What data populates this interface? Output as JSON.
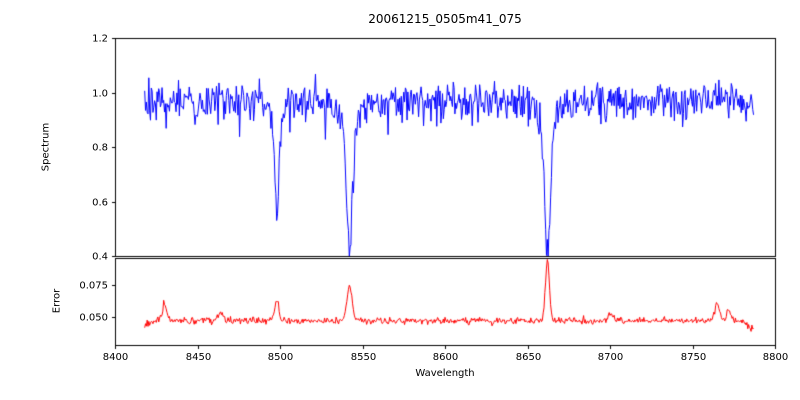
{
  "figure": {
    "background": "#ffffff",
    "axes_color": "#000000"
  },
  "chart_data": {
    "type": "line",
    "title": "20061215_0505m41_075",
    "xlabel": "Wavelength",
    "xlim": [
      8400,
      8800
    ],
    "x_ticks": [
      8400,
      8450,
      8500,
      8550,
      8600,
      8650,
      8700,
      8750,
      8800
    ],
    "x_tick_labels": [
      "8400",
      "8450",
      "8500",
      "8550",
      "8600",
      "8650",
      "8700",
      "8750",
      "8800"
    ],
    "x_data_range": [
      8418,
      8787
    ],
    "grid": false,
    "legend": null,
    "seed": 20061215,
    "panels": [
      {
        "name": "spectrum",
        "ylabel": "Spectrum",
        "ylim": [
          0.4,
          1.2
        ],
        "y_ticks": [
          0.4,
          0.6,
          0.8,
          1.0,
          1.2
        ],
        "y_tick_labels": [
          "0.4",
          "0.6",
          "0.8",
          "1.0",
          "1.2"
        ],
        "line_color": "#0000ff",
        "description": "Noisy stellar spectrum, continuum near 0.97 with Ca II triplet absorption lines",
        "model": {
          "x_start": 8418,
          "x_end": 8787,
          "step": 0.5,
          "continuum": 0.97,
          "noise_sigma": 0.036,
          "spike_prob": 0.05,
          "spike_depth": 0.1,
          "absorption_lines": [
            {
              "center": 8498.0,
              "depth": 0.36,
              "sigma": 1.3
            },
            {
              "center": 8498.0,
              "depth": 0.05,
              "sigma": 3.5
            },
            {
              "center": 8542.1,
              "depth": 0.43,
              "sigma": 1.7
            },
            {
              "center": 8542.1,
              "depth": 0.1,
              "sigma": 5.0
            },
            {
              "center": 8662.1,
              "depth": 0.47,
              "sigma": 1.7
            },
            {
              "center": 8662.1,
              "depth": 0.1,
              "sigma": 5.0
            }
          ],
          "line_minima": [
            {
              "center": 8498,
              "min_value": 0.56
            },
            {
              "center": 8542,
              "min_value": 0.44
            },
            {
              "center": 8662,
              "min_value": 0.4
            }
          ]
        }
      },
      {
        "name": "error",
        "ylabel": "Error",
        "ylim": [
          0.028,
          0.096
        ],
        "y_ticks": [
          0.05,
          0.075
        ],
        "y_tick_labels": [
          "0.050",
          "0.075"
        ],
        "line_color": "#ff0000",
        "description": "Error spectrum, baseline near 0.047 with peaks at absorption line centers",
        "model": {
          "x_start": 8418,
          "x_end": 8787,
          "step": 0.5,
          "baseline": 0.047,
          "noise_sigma": 0.0013,
          "peaks": [
            {
              "center": 8430.0,
              "amp": 0.013,
              "sigma": 1.2
            },
            {
              "center": 8464.0,
              "amp": 0.006,
              "sigma": 1.5
            },
            {
              "center": 8498.0,
              "amp": 0.016,
              "sigma": 1.3
            },
            {
              "center": 8542.1,
              "amp": 0.027,
              "sigma": 1.5
            },
            {
              "center": 8662.1,
              "amp": 0.046,
              "sigma": 1.2
            },
            {
              "center": 8700.0,
              "amp": 0.005,
              "sigma": 2.0
            },
            {
              "center": 8765.0,
              "amp": 0.012,
              "sigma": 1.5
            },
            {
              "center": 8772.0,
              "amp": 0.009,
              "sigma": 1.2
            }
          ],
          "start_dip": {
            "amp": 0.004,
            "sigma": 2.0
          },
          "end_dip": {
            "amp": 0.007,
            "sigma": 3.0
          }
        }
      }
    ]
  }
}
